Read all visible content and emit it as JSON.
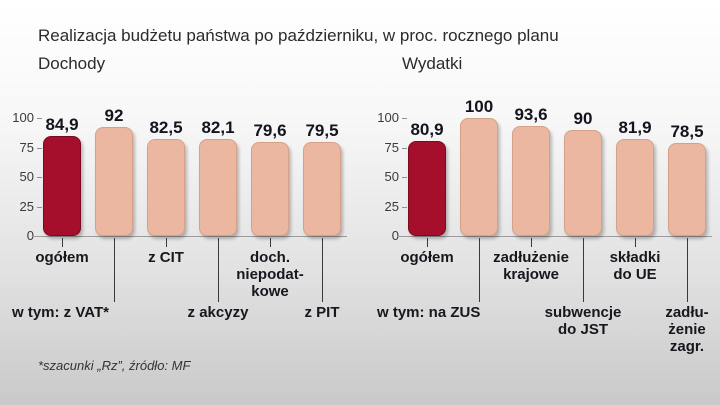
{
  "title": "Realizacja budżetu państwa po październiku, w proc. rocznego planu",
  "footnote": "*szacunki „Rz”, źródło: MF",
  "colors": {
    "highlight": "#a50f2b",
    "highlight_border": "#7c0a1f",
    "bar": "#ebb7a0",
    "bar_border": "#d6a189"
  },
  "chart_data": [
    {
      "type": "bar",
      "title": "Dochody",
      "ylim": [
        0,
        100
      ],
      "yticks": [
        0,
        25,
        50,
        75,
        100
      ],
      "categories": [
        "ogółem",
        "w tym: z VAT*",
        "z CIT",
        "z akcyzy",
        "doch.\nniepodat-\nkowe",
        "z PIT"
      ],
      "values": [
        84.9,
        92,
        82.5,
        82.1,
        79.6,
        79.5
      ],
      "value_labels": [
        "84,9",
        "92",
        "82,5",
        "82,1",
        "79,6",
        "79,5"
      ],
      "highlight_index": 0
    },
    {
      "type": "bar",
      "title": "Wydatki",
      "ylim": [
        0,
        100
      ],
      "yticks": [
        0,
        25,
        50,
        75,
        100
      ],
      "categories": [
        "ogółem",
        "w tym: na ZUS",
        "zadłużenie\nkrajowe",
        "subwencje\ndo JST",
        "składki\ndo UE",
        "zadłu-\nżenie\nzagr."
      ],
      "values": [
        80.9,
        100,
        93.6,
        90,
        81.9,
        78.5
      ],
      "value_labels": [
        "80,9",
        "100",
        "93,6",
        "90",
        "81,9",
        "78,5"
      ],
      "highlight_index": 0
    }
  ]
}
